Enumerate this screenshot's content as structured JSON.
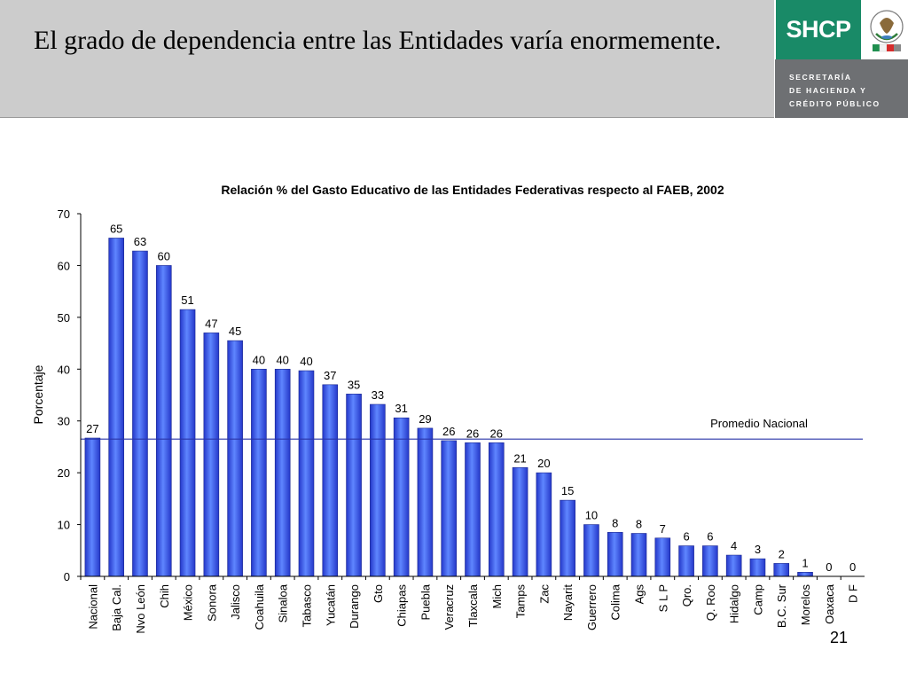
{
  "header": {
    "title": "El grado de dependencia entre las Entidades varía enormemente."
  },
  "logo": {
    "brand": "SHCP",
    "subtitle_lines": [
      "SECRETARÍA",
      "DE HACIENDA Y",
      "CRÉDITO PÚBLICO"
    ]
  },
  "colors": {
    "header_bg": "#cccccc",
    "logo_green": "#198a67",
    "logo_gray": "#6e7073",
    "bar_fill": "#3b5df5",
    "average_line": "#2a35a8"
  },
  "chart_data": {
    "type": "bar",
    "title": "Relación % del Gasto Educativo de las Entidades Federativas respecto al FAEB, 2002",
    "ylabel": "Porcentaje",
    "xlabel": "",
    "ylim": [
      0,
      70
    ],
    "yticks": [
      0,
      10,
      20,
      30,
      40,
      50,
      60,
      70
    ],
    "grid": false,
    "categories": [
      "Nacional",
      "Baja Cal.",
      "Nvo León",
      "Chih",
      "México",
      "Sonora",
      "Jalisco",
      "Coahuila",
      "Sinaloa",
      "Tabasco",
      "Yucatán",
      "Durango",
      "Gto",
      "Chiapas",
      "Puebla",
      "Veracruz",
      "Tlaxcala",
      "Mich",
      "Tamps",
      "Zac",
      "Nayarit",
      "Guerrero",
      "Colima",
      "Ags",
      "S L P",
      "Qro.",
      "Q. Roo",
      "Hidalgo",
      "Camp",
      "B.C. Sur",
      "Morelos",
      "Oaxaca",
      "D F"
    ],
    "values": [
      26.7,
      65.3,
      62.8,
      60.0,
      51.5,
      47.0,
      45.5,
      40.0,
      40.0,
      39.7,
      37.0,
      35.2,
      33.2,
      30.6,
      28.6,
      26.2,
      25.8,
      25.8,
      21.0,
      20.0,
      14.7,
      10.0,
      8.5,
      8.3,
      7.4,
      5.9,
      5.9,
      4.1,
      3.4,
      2.5,
      0.8,
      0.0,
      0.0
    ],
    "data_labels": [
      "27",
      "65",
      "63",
      "60",
      "51",
      "47",
      "45",
      "40",
      "40",
      "40",
      "37",
      "35",
      "33",
      "31",
      "29",
      "26",
      "26",
      "26",
      "21",
      "20",
      "15",
      "10",
      "8",
      "8",
      "7",
      "6",
      "6",
      "4",
      "3",
      "2",
      "1",
      "0",
      "0"
    ],
    "reference_line": {
      "label": "Promedio Nacional",
      "value": 26.5
    }
  },
  "page_number": "21"
}
